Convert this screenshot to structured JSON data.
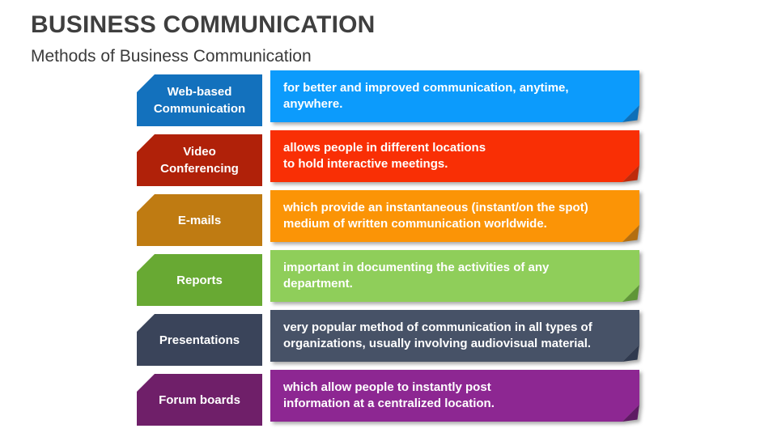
{
  "slide": {
    "title": "BUSINESS COMMUNICATION",
    "subtitle": "Methods of Business Communication",
    "background_color": "#ffffff",
    "title_color": "#3f3f3f"
  },
  "rows": [
    {
      "label_lines": [
        "Web-based",
        "Communication"
      ],
      "desc_lines": [
        "for better and improved communication, anytime, anywhere."
      ],
      "colors": {
        "label": "#1371bd",
        "body": "#0c9bfc",
        "fold": "#0d6fb8"
      }
    },
    {
      "label_lines": [
        "Video",
        "Conferencing"
      ],
      "desc_lines": [
        "allows people in different locations",
        "to hold interactive meetings."
      ],
      "colors": {
        "label": "#b02109",
        "body": "#f92f05",
        "fold": "#be2b0b"
      }
    },
    {
      "label_lines": [
        "E-mails"
      ],
      "desc_lines": [
        "which provide an instantaneous (instant/on the spot)",
        "medium of written communication worldwide."
      ],
      "colors": {
        "label": "#bf7b12",
        "body": "#fb9406",
        "fold": "#b36e10"
      }
    },
    {
      "label_lines": [
        "Reports"
      ],
      "desc_lines": [
        "important in documenting the activities of any department."
      ],
      "colors": {
        "label": "#68a933",
        "body": "#8fce5a",
        "fold": "#5f9638"
      }
    },
    {
      "label_lines": [
        "Presentations"
      ],
      "desc_lines": [
        "very popular method of communication in all types of",
        "organizations, usually involving audiovisual material."
      ],
      "colors": {
        "label": "#3a445a",
        "body": "#475267",
        "fold": "#303a4f"
      }
    },
    {
      "label_lines": [
        "Forum boards"
      ],
      "desc_lines": [
        "which allow people to instantly post",
        "information at a centralized location."
      ],
      "colors": {
        "label": "#6f1f69",
        "body": "#8d2792",
        "fold": "#5e1b63"
      }
    }
  ]
}
